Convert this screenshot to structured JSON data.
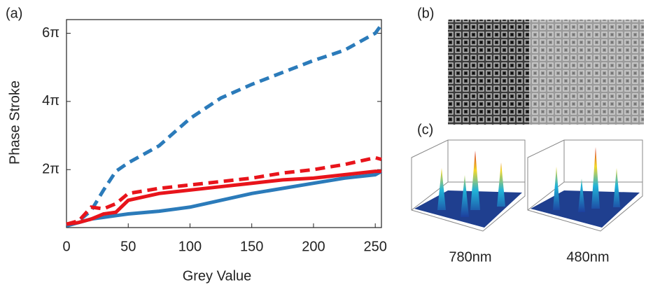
{
  "chart_data": {
    "type": "line",
    "x_label": "Grey Value",
    "y_label": "Phase Stroke",
    "panel_label": "(a)",
    "x": [
      0,
      10,
      20,
      30,
      40,
      50,
      75,
      100,
      125,
      150,
      175,
      200,
      225,
      250,
      255
    ],
    "series": [
      {
        "color": "#2b7bba",
        "dashed": true,
        "values": [
          0.37,
          0.5,
          0.8,
          1.4,
          1.95,
          2.2,
          2.7,
          3.5,
          4.1,
          4.5,
          4.85,
          5.2,
          5.5,
          6.0,
          6.25
        ]
      },
      {
        "color": "#2b7bba",
        "dashed": false,
        "values": [
          0.35,
          0.45,
          0.55,
          0.6,
          0.65,
          0.7,
          0.78,
          0.9,
          1.1,
          1.3,
          1.45,
          1.6,
          1.75,
          1.85,
          1.95
        ]
      },
      {
        "color": "#e8141b",
        "dashed": true,
        "values": [
          0.4,
          0.5,
          0.9,
          0.85,
          1.0,
          1.3,
          1.45,
          1.55,
          1.65,
          1.75,
          1.9,
          2.0,
          2.15,
          2.35,
          2.3
        ]
      },
      {
        "color": "#e8141b",
        "dashed": false,
        "values": [
          0.4,
          0.45,
          0.55,
          0.7,
          0.75,
          1.1,
          1.3,
          1.4,
          1.5,
          1.6,
          1.7,
          1.75,
          1.85,
          1.95,
          1.95
        ]
      }
    ],
    "xlim": [
      0,
      255
    ],
    "xticks": [
      0,
      50,
      100,
      150,
      200,
      250
    ],
    "ylim": [
      0.3,
      6.4
    ],
    "yticks": [
      {
        "value": 2,
        "label": "2π"
      },
      {
        "value": 4,
        "label": "4π"
      },
      {
        "value": 6,
        "label": "6π"
      }
    ]
  },
  "panels": {
    "b": {
      "label": "(b)"
    },
    "c": {
      "label": "(c)",
      "captions": [
        "780nm",
        "480nm"
      ]
    }
  }
}
